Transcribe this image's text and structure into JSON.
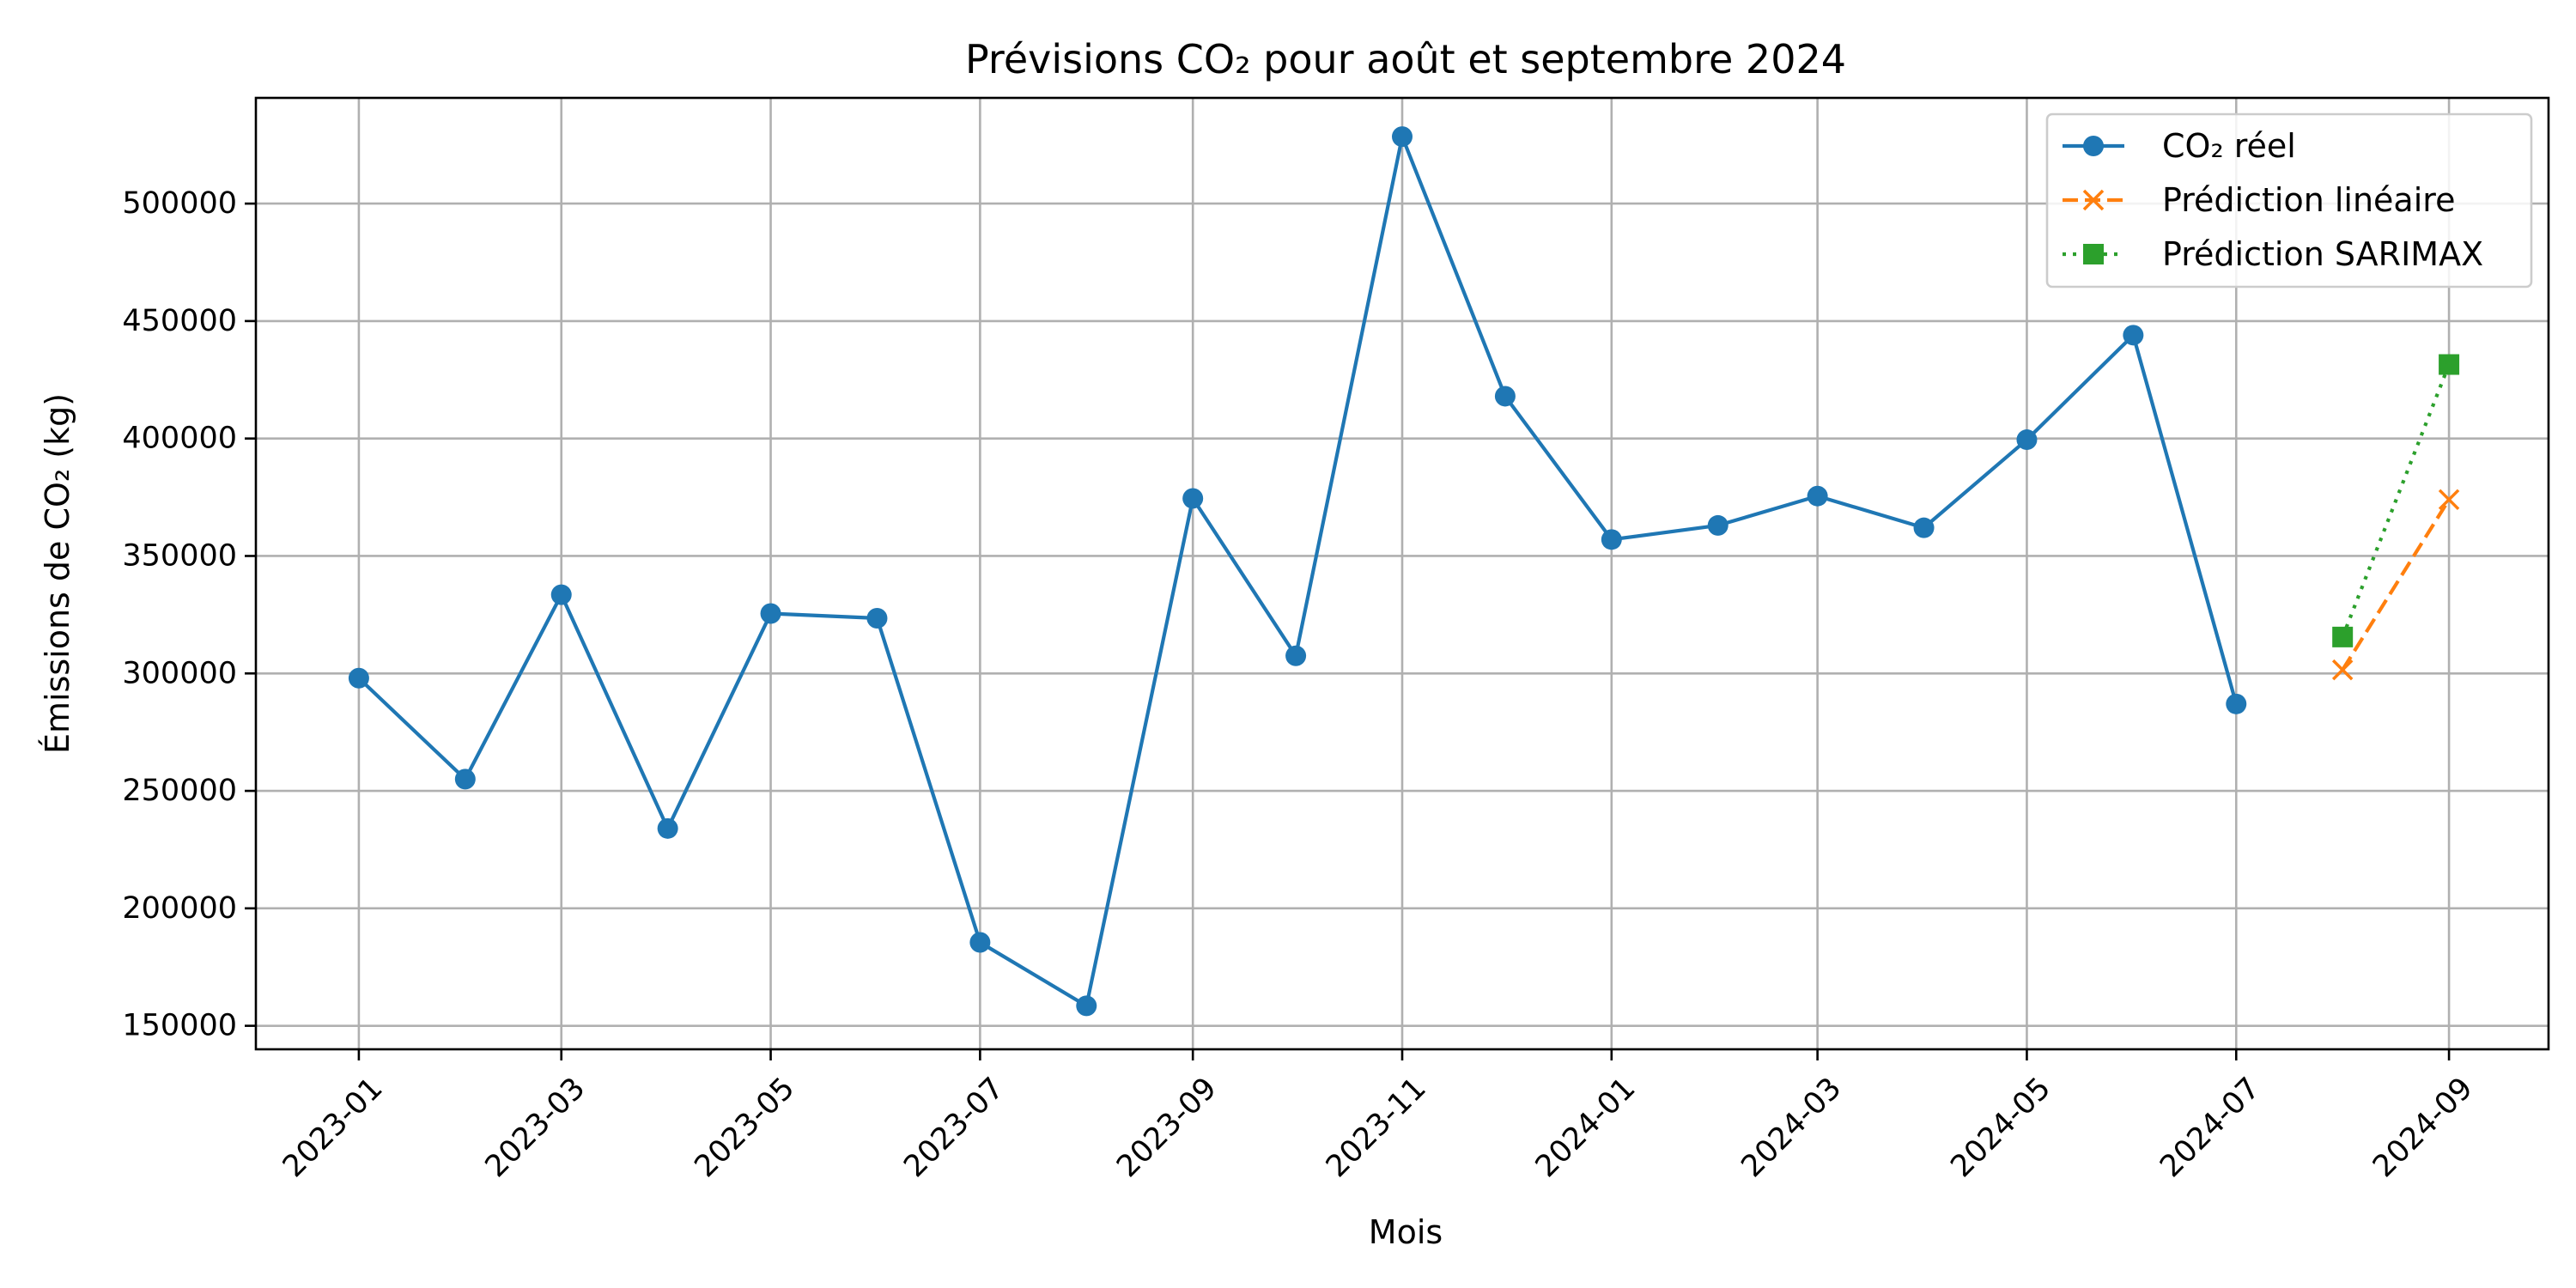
{
  "chart_data": {
    "type": "line",
    "title": "Prévisions CO₂ pour août et septembre 2024",
    "xlabel": "Mois",
    "ylabel": "Émissions de CO₂ (kg)",
    "x_ticks": [
      "2023-01",
      "2023-03",
      "2023-05",
      "2023-07",
      "2023-09",
      "2023-11",
      "2024-01",
      "2024-03",
      "2024-05",
      "2024-07",
      "2024-09"
    ],
    "y_ticks": [
      150000,
      200000,
      250000,
      300000,
      350000,
      400000,
      450000,
      500000
    ],
    "ylim": [
      140000,
      545000
    ],
    "xlim": [
      "2022-12-02",
      "2024-09-30"
    ],
    "grid": true,
    "legend_position": "top-right",
    "series": [
      {
        "name": "CO₂ réel",
        "color": "#1f77b4",
        "line_style": "solid",
        "marker": "circle",
        "x": [
          "2023-01-01",
          "2023-02-01",
          "2023-03-01",
          "2023-04-01",
          "2023-05-01",
          "2023-06-01",
          "2023-07-01",
          "2023-08-01",
          "2023-09-01",
          "2023-10-01",
          "2023-11-01",
          "2023-12-01",
          "2024-01-01",
          "2024-02-01",
          "2024-03-01",
          "2024-04-01",
          "2024-05-01",
          "2024-06-01",
          "2024-07-01"
        ],
        "values": [
          298000,
          255000,
          333500,
          234000,
          325500,
          323500,
          185500,
          158500,
          374500,
          307500,
          528500,
          418000,
          357000,
          363000,
          375500,
          362000,
          399500,
          444000,
          287000
        ]
      },
      {
        "name": "Prédiction linéaire",
        "color": "#ff7f0e",
        "line_style": "dashed",
        "marker": "x",
        "x": [
          "2024-08-01",
          "2024-09-01"
        ],
        "values": [
          301500,
          374000
        ]
      },
      {
        "name": "Prédiction SARIMAX",
        "color": "#2ca02c",
        "line_style": "dotted",
        "marker": "square",
        "x": [
          "2024-08-01",
          "2024-09-01"
        ],
        "values": [
          315500,
          431500
        ]
      }
    ]
  }
}
